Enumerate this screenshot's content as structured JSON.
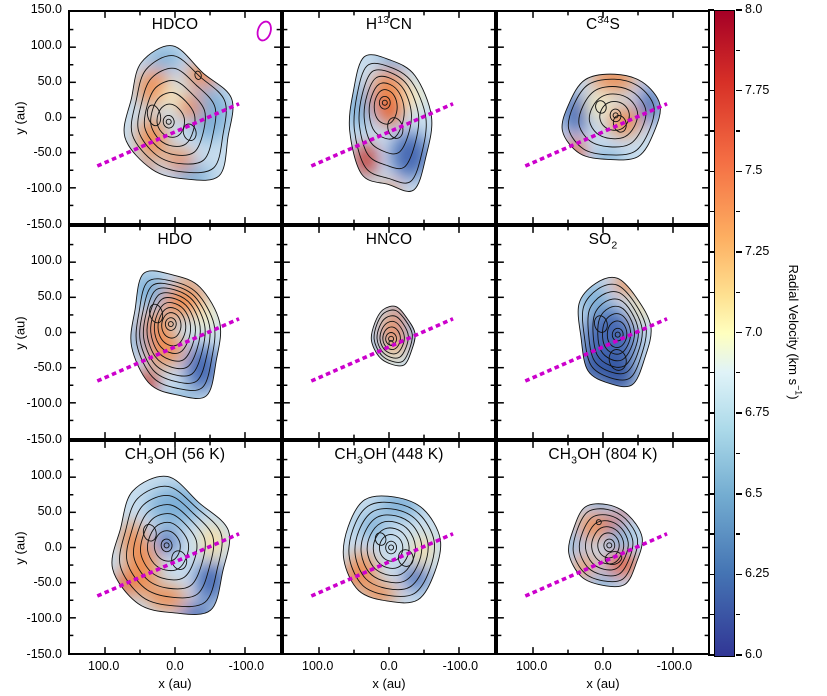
{
  "figure": {
    "kind": "3x3 grid of molecular-line velocity maps with a shared colorbar"
  },
  "panels": [
    {
      "id": "hdco",
      "title_pre": "HDCO"
    },
    {
      "id": "h13cn",
      "title_pre": "H",
      "title_sup": "13",
      "title_post": "CN"
    },
    {
      "id": "c34s",
      "title_pre": "C",
      "title_sup": "34",
      "title_post": "S"
    },
    {
      "id": "hdo",
      "title_pre": "HDO"
    },
    {
      "id": "hnco",
      "title_pre": "HNCO"
    },
    {
      "id": "so2",
      "title_pre": "SO",
      "title_sub": "2"
    },
    {
      "id": "ch3oh-56k",
      "title_pre": "CH",
      "title_sub": "3",
      "title_post": "OH (56 K)"
    },
    {
      "id": "ch3oh-448k",
      "title_pre": "CH",
      "title_sub": "3",
      "title_post": "OH (448 K)"
    },
    {
      "id": "ch3oh-804k",
      "title_pre": "CH",
      "title_sub": "3",
      "title_post": "OH (804 K)"
    }
  ],
  "axes": {
    "x_label": "x (au)",
    "y_label": "y (au)",
    "x_tick_labels": [
      "100.0",
      "0.0",
      "-100.0"
    ],
    "y_tick_labels": [
      "150.0",
      "100.0",
      "50.0",
      "0.0",
      "-50.0",
      "-100.0",
      "-150.0"
    ]
  },
  "colorbar": {
    "label_pre": "Radial Velocity (km s",
    "label_sup": "−1",
    "label_post": ")",
    "ticks": [
      "8.0",
      "7.75",
      "7.5",
      "7.25",
      "7.0",
      "6.75",
      "6.5",
      "6.25",
      "6.0"
    ],
    "min": 6.0,
    "max": 8.0,
    "colormap": "RdYlBu_r",
    "color_min": "#313695",
    "color_max": "#a50026"
  },
  "annotations": {
    "cut_line_color": "#cc00cc",
    "beam_color": "#cc00cc"
  },
  "chart_data": {
    "type": "heatmap",
    "layout": "3 columns x 3 rows of moment-1 (radial velocity) maps overlaid with black integrated-intensity contours; magenta dashed line crossing each panel; magenta beam ellipse drawn in the first panel",
    "panels": [
      "HDCO",
      "H13CN",
      "C34S",
      "HDO",
      "HNCO",
      "SO2",
      "CH3OH (56 K)",
      "CH3OH (448 K)",
      "CH3OH (804 K)"
    ],
    "xlabel": "x (au)",
    "ylabel": "y (au)",
    "xlim": [
      150,
      -150
    ],
    "ylim": [
      -150,
      150
    ],
    "x_ticks": [
      100,
      0,
      -100
    ],
    "y_ticks": [
      150,
      100,
      50,
      0,
      -50,
      -100,
      -150
    ],
    "colorbar": {
      "label": "Radial Velocity (km s⁻¹)",
      "range": [
        6.0,
        8.0
      ],
      "ticks": [
        8.0,
        7.75,
        7.5,
        7.25,
        7.0,
        6.75,
        6.5,
        6.25,
        6.0
      ],
      "colormap": "RdYlBu_r",
      "position": "right"
    },
    "grid": false
  }
}
